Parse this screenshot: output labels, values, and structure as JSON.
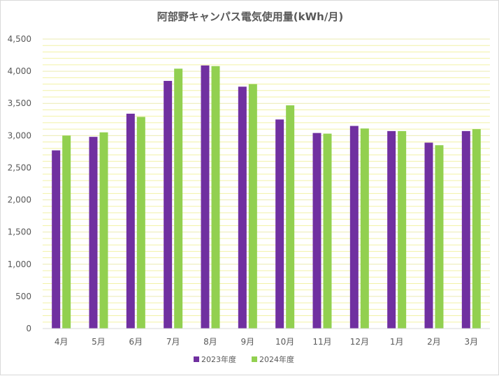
{
  "chart_data": {
    "type": "bar",
    "title": "阿部野キャンパス電気使用量(kWh/月)",
    "xlabel": "",
    "ylabel": "",
    "categories": [
      "4月",
      "5月",
      "6月",
      "7月",
      "8月",
      "9月",
      "10月",
      "11月",
      "12月",
      "1月",
      "2月",
      "3月"
    ],
    "series": [
      {
        "name": "2023年度",
        "color": "#7030a0",
        "values": [
          2770,
          2980,
          3340,
          3850,
          4090,
          3760,
          3250,
          3040,
          3150,
          3070,
          2890,
          3070
        ]
      },
      {
        "name": "2024年度",
        "color": "#92d050",
        "values": [
          3000,
          3050,
          3290,
          4040,
          4080,
          3800,
          3470,
          3030,
          3110,
          3070,
          2850,
          3100
        ]
      }
    ],
    "ylim": [
      0,
      4500
    ],
    "yticks": [
      0,
      500,
      1000,
      1500,
      2000,
      2500,
      3000,
      3500,
      4000,
      4500
    ],
    "ytick_labels": [
      "0",
      "500",
      "1,000",
      "1,500",
      "2,000",
      "2,500",
      "3,000",
      "3,500",
      "4,000",
      "4,500"
    ],
    "grid": true,
    "minor_grid_color": "#f2f2a6",
    "major_grid_color": "#ebebb0",
    "legend_position": "bottom"
  }
}
